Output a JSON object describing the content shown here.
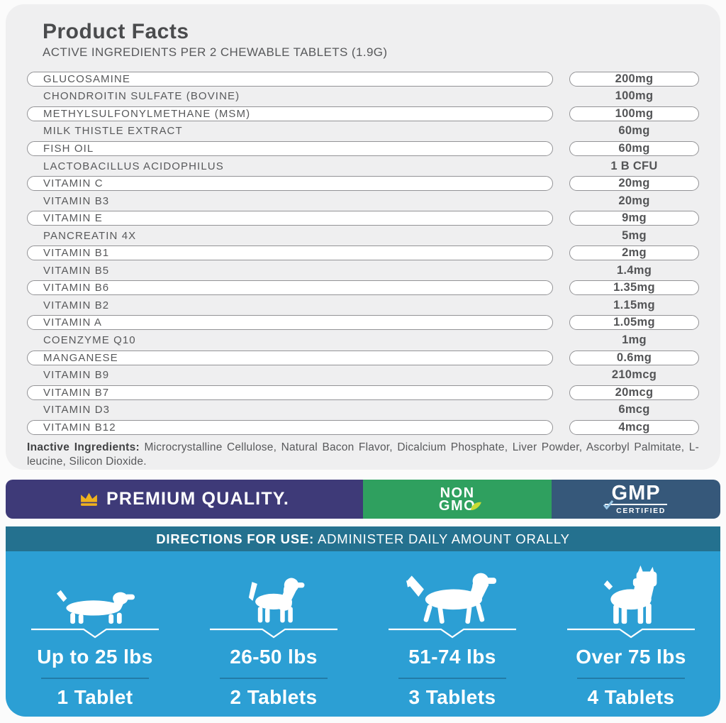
{
  "header": {
    "title": "Product Facts",
    "subtitle": "ACTIVE INGREDIENTS PER 2 CHEWABLE TABLETS (1.9G)"
  },
  "ingredients": [
    {
      "name": "GLUCOSAMINE",
      "amount": "200mg",
      "pill": true
    },
    {
      "name": "CHONDROITIN SULFATE (BOVINE)",
      "amount": "100mg",
      "pill": false
    },
    {
      "name": "METHYLSULFONYLMETHANE (MSM)",
      "amount": "100mg",
      "pill": true
    },
    {
      "name": "MILK THISTLE EXTRACT",
      "amount": "60mg",
      "pill": false
    },
    {
      "name": "FISH OIL",
      "amount": "60mg",
      "pill": true
    },
    {
      "name": "LACTOBACILLUS ACIDOPHILUS",
      "amount": "1 B CFU",
      "pill": false
    },
    {
      "name": "VITAMIN C",
      "amount": "20mg",
      "pill": true
    },
    {
      "name": "VITAMIN B3",
      "amount": "20mg",
      "pill": false
    },
    {
      "name": "VITAMIN E",
      "amount": "9mg",
      "pill": true
    },
    {
      "name": "PANCREATIN 4X",
      "amount": "5mg",
      "pill": false
    },
    {
      "name": "VITAMIN B1",
      "amount": "2mg",
      "pill": true
    },
    {
      "name": "VITAMIN B5",
      "amount": "1.4mg",
      "pill": false
    },
    {
      "name": "VITAMIN B6",
      "amount": "1.35mg",
      "pill": true
    },
    {
      "name": "VITAMIN B2",
      "amount": "1.15mg",
      "pill": false
    },
    {
      "name": "VITAMIN A",
      "amount": "1.05mg",
      "pill": true
    },
    {
      "name": "COENZYME Q10",
      "amount": "1mg",
      "pill": false
    },
    {
      "name": "MANGANESE",
      "amount": "0.6mg",
      "pill": true
    },
    {
      "name": "VITAMIN B9",
      "amount": "210mcg",
      "pill": false
    },
    {
      "name": "VITAMIN B7",
      "amount": "20mcg",
      "pill": true
    },
    {
      "name": "VITAMIN D3",
      "amount": "6mcg",
      "pill": false
    },
    {
      "name": "VITAMIN B12",
      "amount": "4mcg",
      "pill": true
    }
  ],
  "inactive": {
    "label": "Inactive Ingredients:",
    "text": " Microcrystalline Cellulose, Natural Bacon Flavor, Dicalcium Phosphate, Liver Powder, Ascorbyl Palmitate, L-leucine, Silicon Dioxide."
  },
  "badges": {
    "premium": {
      "label": "PREMIUM QUALITY."
    },
    "non_gmo": {
      "line1": "NON",
      "line2": "GMO"
    },
    "gmp": {
      "title": "GMP",
      "subtitle": "CERTIFIED"
    }
  },
  "directions": {
    "label": "DIRECTIONS FOR USE:",
    "text": " ADMINISTER DAILY AMOUNT ORALLY"
  },
  "dosage": {
    "groups": [
      {
        "dog": "dachshund",
        "weight": "Up to 25 lbs",
        "tablets": "1 Tablet"
      },
      {
        "dog": "beagle",
        "weight": "26-50 lbs",
        "tablets": "2 Tablets"
      },
      {
        "dog": "golden-retriever",
        "weight": "51-74 lbs",
        "tablets": "3 Tablets"
      },
      {
        "dog": "boxer",
        "weight": "Over 75 lbs",
        "tablets": "4 Tablets"
      }
    ]
  },
  "colors": {
    "panel_bg": "#efeff0",
    "text_dark": "#4a4b4d",
    "text_gray": "#58595b",
    "pill_border": "#939396",
    "premium_bg": "#3e3a78",
    "crown_gold": "#f0b21d",
    "nongmo_bg": "#2fa05f",
    "leaf_green": "#c8dc33",
    "gmp_bg": "#36587a",
    "gmp_check": "#9cc9e8",
    "directions_bg": "#24718f",
    "dosage_bg": "#2c9fd4",
    "dose_divider": "#1c5f84"
  }
}
